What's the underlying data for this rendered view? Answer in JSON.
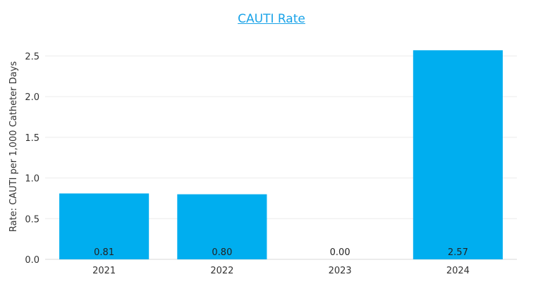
{
  "chart_data": {
    "type": "bar",
    "title": "CAUTI Rate",
    "categories": [
      "2021",
      "2022",
      "2023",
      "2024"
    ],
    "values": [
      0.81,
      0.8,
      0.0,
      2.57
    ],
    "value_labels": [
      "0.81",
      "0.80",
      "0.00",
      "2.57"
    ],
    "ylabel": "Rate: CAUTI per 1,000 Catheter Days",
    "xlabel": "",
    "ylim": [
      0,
      2.72
    ],
    "yticks": [
      "0.0",
      "0.5",
      "1.0",
      "1.5",
      "2.0",
      "2.5"
    ],
    "ytick_values": [
      0,
      0.5,
      1.0,
      1.5,
      2.0,
      2.5
    ],
    "grid": true,
    "bar_color": "#00aeef",
    "title_color": "#1aa3e8"
  }
}
